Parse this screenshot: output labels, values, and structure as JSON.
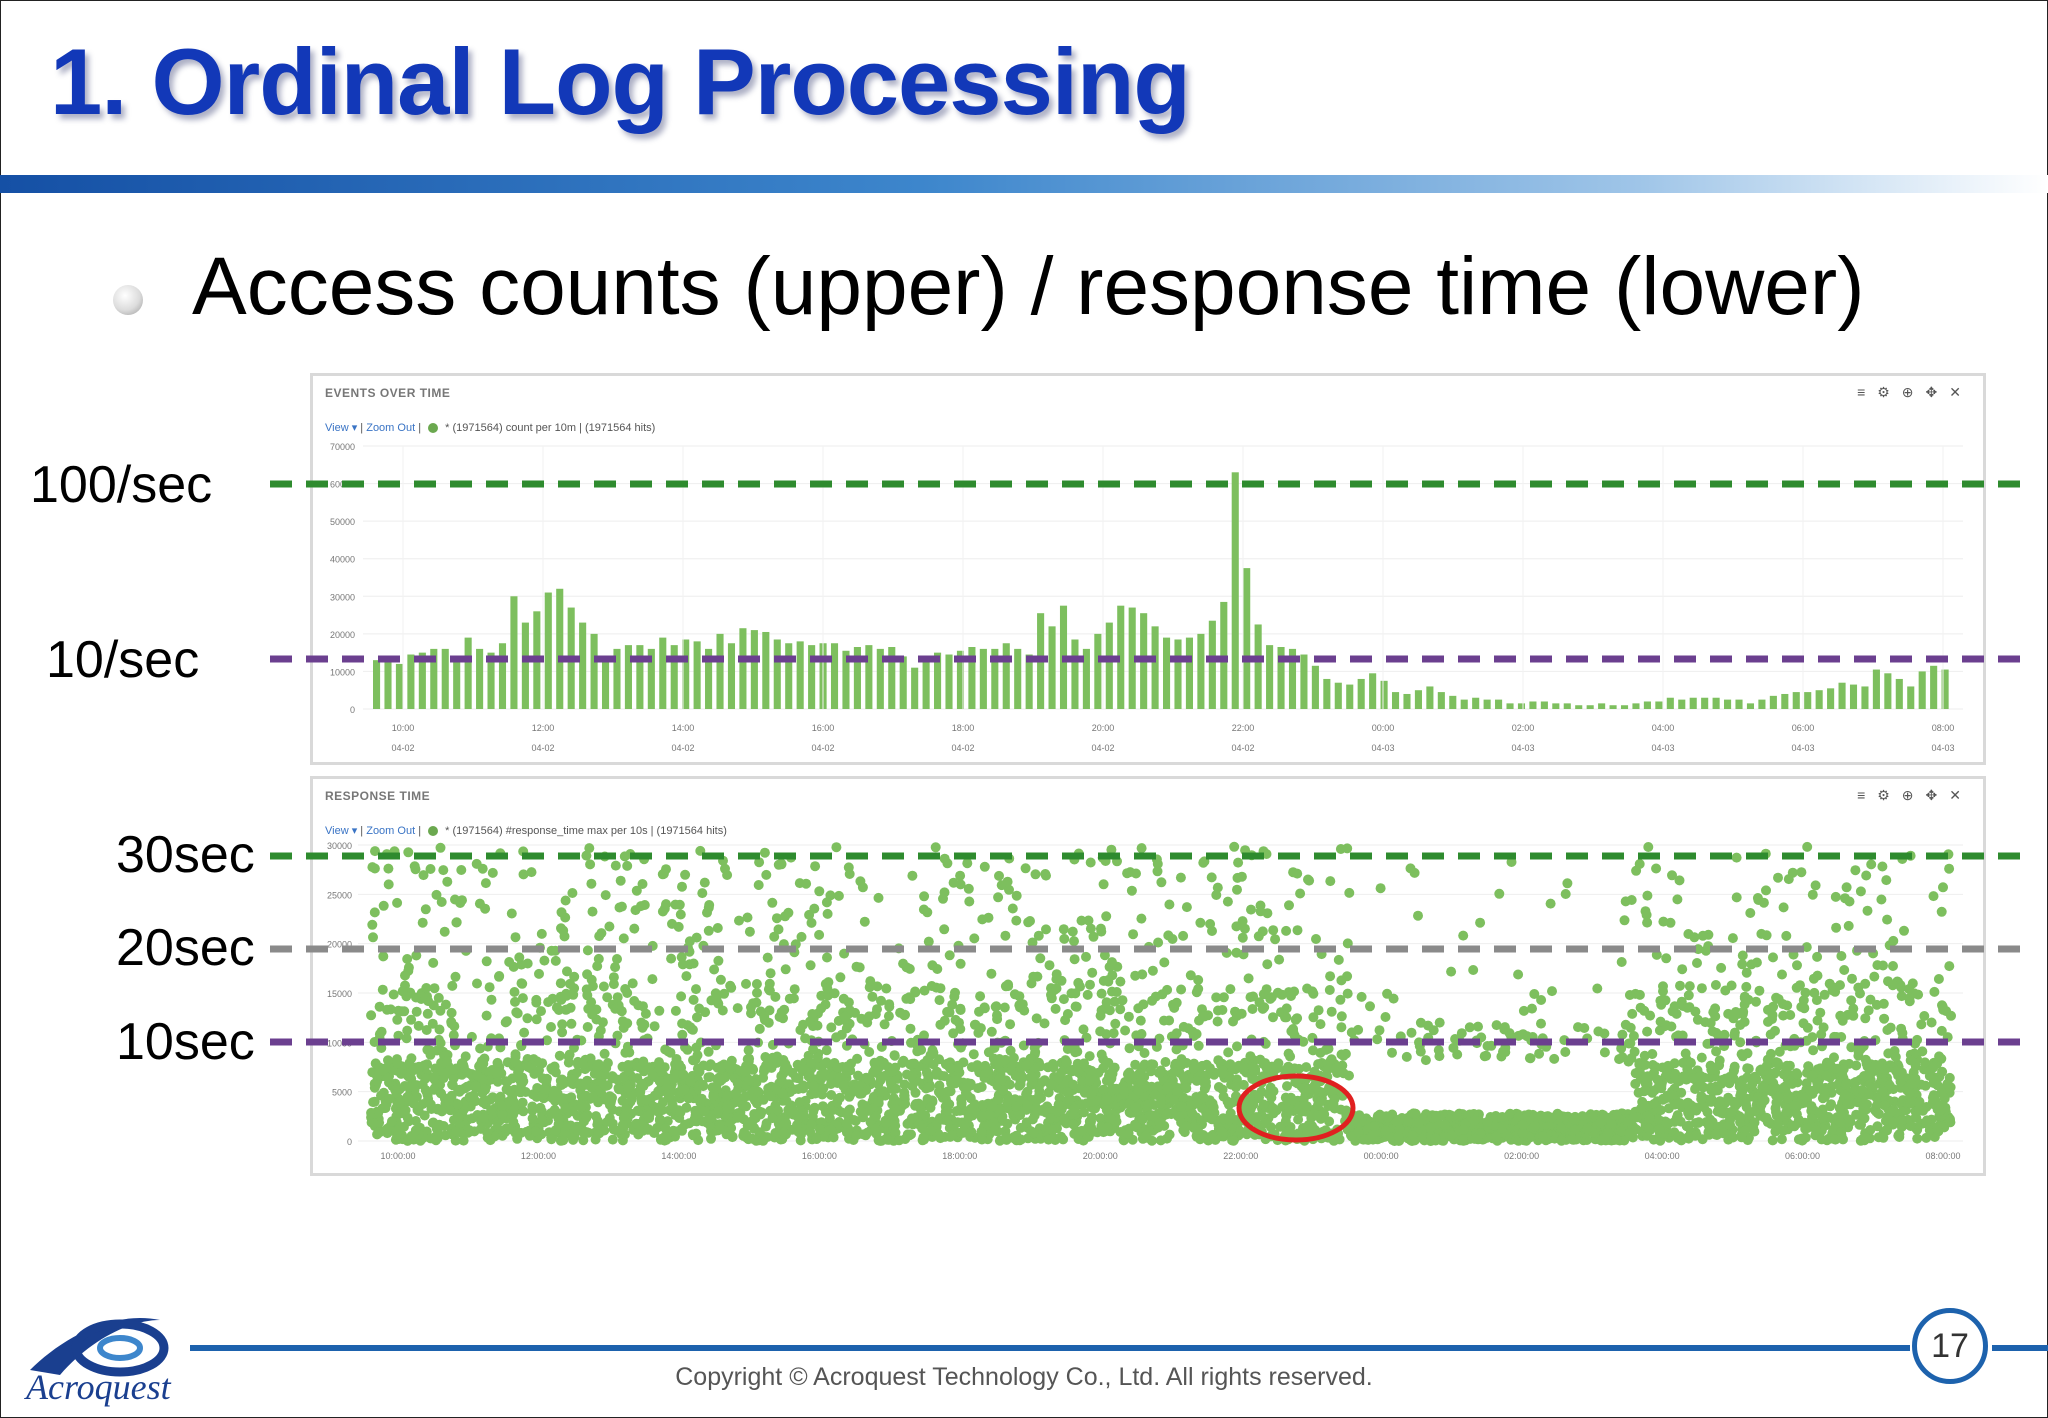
{
  "slide": {
    "title": "1. Ordinal Log Processing",
    "bullet": "Access counts (upper) / response time (lower)",
    "copyright": "Copyright © Acroquest Technology Co., Ltd. All rights reserved.",
    "page_number": "17",
    "logo_text": "Acroquest"
  },
  "annotations": {
    "upper_100": "100/sec",
    "upper_10": "10/sec",
    "lower_30": "30sec",
    "lower_20": "20sec",
    "lower_10": "10sec",
    "colors": {
      "green": "#2e8b2e",
      "purple": "#6b3f8f",
      "gray": "#8a8a8a",
      "highlight": "#e02020"
    }
  },
  "panels": {
    "upper": {
      "title": "EVENTS OVER TIME",
      "view_label": "View ▾",
      "zoom_label": "Zoom Out",
      "legend_text": "* (1971564)  count per 10m | (1971564 hits)"
    },
    "lower": {
      "title": "RESPONSE TIME",
      "view_label": "View ▾",
      "zoom_label": "Zoom Out",
      "legend_text": "* (1971564)  #response_time max per 10s | (1971564 hits)"
    }
  },
  "chart_data": [
    {
      "type": "bar",
      "title": "EVENTS OVER TIME",
      "ylim": [
        0,
        70000
      ],
      "yticks": [
        "0",
        "10000",
        "20000",
        "30000",
        "40000",
        "50000",
        "60000",
        "70000"
      ],
      "xticks": [
        {
          "time": "10:00",
          "date": "04-02"
        },
        {
          "time": "12:00",
          "date": "04-02"
        },
        {
          "time": "14:00",
          "date": "04-02"
        },
        {
          "time": "16:00",
          "date": "04-02"
        },
        {
          "time": "18:00",
          "date": "04-02"
        },
        {
          "time": "20:00",
          "date": "04-02"
        },
        {
          "time": "22:00",
          "date": "04-02"
        },
        {
          "time": "00:00",
          "date": "04-03"
        },
        {
          "time": "02:00",
          "date": "04-03"
        },
        {
          "time": "04:00",
          "date": "04-03"
        },
        {
          "time": "06:00",
          "date": "04-03"
        },
        {
          "time": "08:00",
          "date": "04-03"
        }
      ],
      "bar_color": "#7dbf5e",
      "values": [
        13000,
        13500,
        12000,
        14500,
        15000,
        16000,
        16000,
        13500,
        19000,
        16000,
        15000,
        17500,
        30000,
        23000,
        26000,
        31000,
        32000,
        27000,
        23000,
        20000,
        14000,
        16000,
        17000,
        17000,
        16000,
        19000,
        17000,
        18500,
        18000,
        16000,
        20000,
        17500,
        21500,
        21000,
        20500,
        18500,
        17500,
        18000,
        17000,
        17500,
        17500,
        15500,
        16500,
        17000,
        16000,
        16500,
        14000,
        11000,
        13500,
        15000,
        14500,
        15500,
        16500,
        16000,
        16000,
        17500,
        16000,
        14500,
        25500,
        22000,
        27500,
        18500,
        16000,
        20000,
        23000,
        27500,
        27000,
        25500,
        22000,
        19000,
        18500,
        19000,
        20000,
        23500,
        28500,
        63000,
        37500,
        22500,
        17000,
        16500,
        16000,
        14500,
        11500,
        8000,
        7000,
        6500,
        8000,
        9500,
        7500,
        4500,
        4000,
        5000,
        6000,
        4500,
        3500,
        2500,
        3000,
        2500,
        2500,
        1500,
        1500,
        2000,
        2000,
        1500,
        1500,
        1000,
        1000,
        1500,
        1000,
        1000,
        1500,
        2000,
        2000,
        3000,
        2500,
        3000,
        3000,
        3000,
        2500,
        2500,
        1500,
        2500,
        3500,
        4000,
        4500,
        4500,
        5000,
        5500,
        7000,
        6500,
        6000,
        10500,
        9500,
        8000,
        6000,
        10000,
        11500,
        10500
      ]
    },
    {
      "type": "scatter",
      "title": "RESPONSE TIME",
      "ylim": [
        0,
        30000
      ],
      "yticks": [
        "0",
        "5000",
        "10000",
        "15000",
        "20000",
        "25000",
        "30000"
      ],
      "xticks": [
        "10:00:00",
        "12:00:00",
        "14:00:00",
        "16:00:00",
        "18:00:00",
        "20:00:00",
        "22:00:00",
        "00:00:00",
        "02:00:00",
        "04:00:00",
        "06:00:00",
        "08:00:00"
      ],
      "point_color": "#7dbf5e"
    }
  ]
}
